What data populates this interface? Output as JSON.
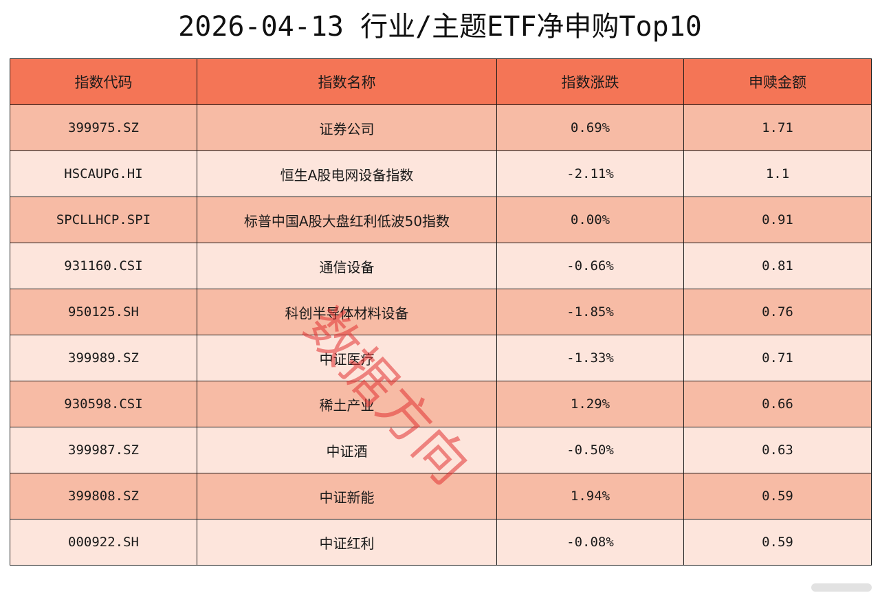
{
  "title": "2026-04-13 行业/主题ETF净申购Top10",
  "colors": {
    "header_bg": "#f47556",
    "row_dark": "#f7bba5",
    "row_light": "#fde5dc",
    "watermark": "#e84a4a"
  },
  "table": {
    "headers": [
      "指数代码",
      "指数名称",
      "指数涨跌",
      "申赎金额"
    ],
    "rows": [
      [
        "399975.SZ",
        "证券公司",
        "0.69%",
        "1.71"
      ],
      [
        "HSCAUPG.HI",
        "恒生A股电网设备指数",
        "-2.11%",
        "1.1"
      ],
      [
        "SPCLLHCP.SPI",
        "标普中国A股大盘红利低波50指数",
        "0.00%",
        "0.91"
      ],
      [
        "931160.CSI",
        "通信设备",
        "-0.66%",
        "0.81"
      ],
      [
        "950125.SH",
        "科创半导体材料设备",
        "-1.85%",
        "0.76"
      ],
      [
        "399989.SZ",
        "中证医疗",
        "-1.33%",
        "0.71"
      ],
      [
        "930598.CSI",
        "稀土产业",
        "1.29%",
        "0.66"
      ],
      [
        "399987.SZ",
        "中证酒",
        "-0.50%",
        "0.63"
      ],
      [
        "399808.SZ",
        "中证新能",
        "1.94%",
        "0.59"
      ],
      [
        "000922.SH",
        "中证红利",
        "-0.08%",
        "0.59"
      ]
    ]
  },
  "watermark_text": "数据方向"
}
